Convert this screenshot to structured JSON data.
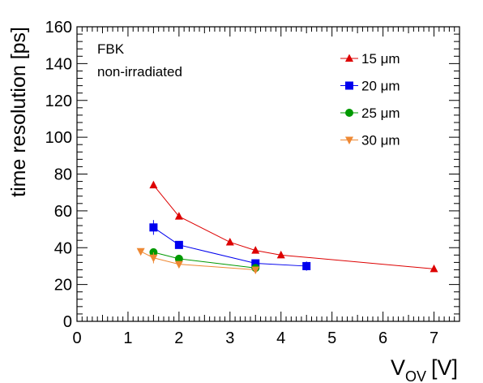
{
  "chart_data": {
    "type": "line",
    "title": "",
    "xlabel_main": "V",
    "xlabel_sub": "OV",
    "xlabel_unit": "[V]",
    "ylabel": "time resolution [ps]",
    "xlim": [
      0,
      7.5
    ],
    "ylim": [
      0,
      160
    ],
    "xticks": [
      0,
      1,
      2,
      3,
      4,
      5,
      6,
      7
    ],
    "xtick_labels": [
      "0",
      "1",
      "2",
      "3",
      "4",
      "5",
      "6",
      "7"
    ],
    "yticks": [
      0,
      20,
      40,
      60,
      80,
      100,
      120,
      140,
      160
    ],
    "ytick_labels": [
      "0",
      "20",
      "40",
      "60",
      "80",
      "100",
      "120",
      "140",
      "160"
    ],
    "grid": false,
    "legend_position": "top-right",
    "annotations": [
      "FBK",
      "non-irradiated"
    ],
    "series": [
      {
        "name": "15 μm",
        "color": "#dd0000",
        "marker": "triangle-up",
        "x": [
          1.5,
          2.0,
          3.0,
          3.5,
          4.0,
          7.0
        ],
        "y": [
          74,
          57,
          43,
          38.5,
          36,
          28.5
        ],
        "yerr": [
          0,
          0,
          0,
          0,
          0,
          0
        ]
      },
      {
        "name": "20 μm",
        "color": "#0000ee",
        "marker": "square",
        "x": [
          1.5,
          2.0,
          3.5,
          4.5
        ],
        "y": [
          51,
          41.5,
          31.5,
          30
        ],
        "yerr": [
          4,
          1.5,
          1.5,
          2.5
        ]
      },
      {
        "name": "25 μm",
        "color": "#009900",
        "marker": "circle",
        "x": [
          1.5,
          2.0,
          3.5
        ],
        "y": [
          37.5,
          34,
          29
        ],
        "yerr": [
          1,
          1,
          1
        ]
      },
      {
        "name": "30 μm",
        "color": "#ee8833",
        "marker": "triangle-down",
        "x": [
          1.25,
          1.5,
          2.0,
          3.5
        ],
        "y": [
          38,
          34.5,
          31,
          28
        ],
        "yerr": [
          1,
          3,
          1.5,
          1
        ]
      }
    ]
  }
}
